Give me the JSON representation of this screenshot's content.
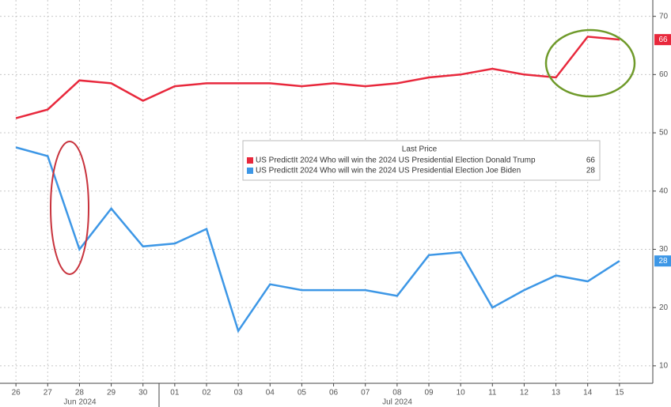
{
  "chart_data": {
    "type": "line",
    "legend_title": "Last Price",
    "x": [
      "2024-06-26",
      "2024-06-27",
      "2024-06-28",
      "2024-06-29",
      "2024-06-30",
      "2024-07-01",
      "2024-07-02",
      "2024-07-03",
      "2024-07-04",
      "2024-07-05",
      "2024-07-06",
      "2024-07-07",
      "2024-07-08",
      "2024-07-09",
      "2024-07-10",
      "2024-07-11",
      "2024-07-12",
      "2024-07-13",
      "2024-07-14",
      "2024-07-15"
    ],
    "series": [
      {
        "name": "US PredictIt 2024 Who will win the 2024 US Presidential Election Donald Trump",
        "color": "#e8283c",
        "values": [
          52.5,
          54,
          59,
          58.5,
          55.5,
          58,
          58.5,
          58.5,
          58.5,
          58,
          58.5,
          58,
          58.5,
          59.5,
          60,
          61,
          60,
          59.5,
          66.5,
          66
        ]
      },
      {
        "name": "US PredictIt 2024 Who will win the 2024 US Presidential Election Joe Biden",
        "color": "#3d97e6",
        "values": [
          47.5,
          46,
          30,
          37,
          30.5,
          31,
          33.5,
          16,
          24,
          23,
          23,
          23,
          22,
          29,
          29.5,
          20,
          23,
          25.5,
          24.5,
          28
        ]
      }
    ],
    "xlim": [
      "2024-06-25",
      "2024-07-16"
    ],
    "xticks": [
      {
        "value": "2024-06-26",
        "label": "26"
      },
      {
        "value": "2024-06-27",
        "label": "27"
      },
      {
        "value": "2024-06-28",
        "label": "28"
      },
      {
        "value": "2024-06-29",
        "label": "29"
      },
      {
        "value": "2024-06-30",
        "label": "30"
      },
      {
        "value": "2024-07-01",
        "label": "01"
      },
      {
        "value": "2024-07-02",
        "label": "02"
      },
      {
        "value": "2024-07-03",
        "label": "03"
      },
      {
        "value": "2024-07-04",
        "label": "04"
      },
      {
        "value": "2024-07-05",
        "label": "05"
      },
      {
        "value": "2024-07-06",
        "label": "06"
      },
      {
        "value": "2024-07-07",
        "label": "07"
      },
      {
        "value": "2024-07-08",
        "label": "08"
      },
      {
        "value": "2024-07-09",
        "label": "09"
      },
      {
        "value": "2024-07-10",
        "label": "10"
      },
      {
        "value": "2024-07-11",
        "label": "11"
      },
      {
        "value": "2024-07-12",
        "label": "12"
      },
      {
        "value": "2024-07-13",
        "label": "13"
      },
      {
        "value": "2024-07-14",
        "label": "14"
      },
      {
        "value": "2024-07-15",
        "label": "15"
      }
    ],
    "month_labels": [
      "Jun 2024",
      "Jul 2024"
    ],
    "ylim": [
      7,
      72.8
    ],
    "yticks": [
      10,
      20,
      30,
      40,
      50,
      60,
      70
    ],
    "grid": true
  }
}
